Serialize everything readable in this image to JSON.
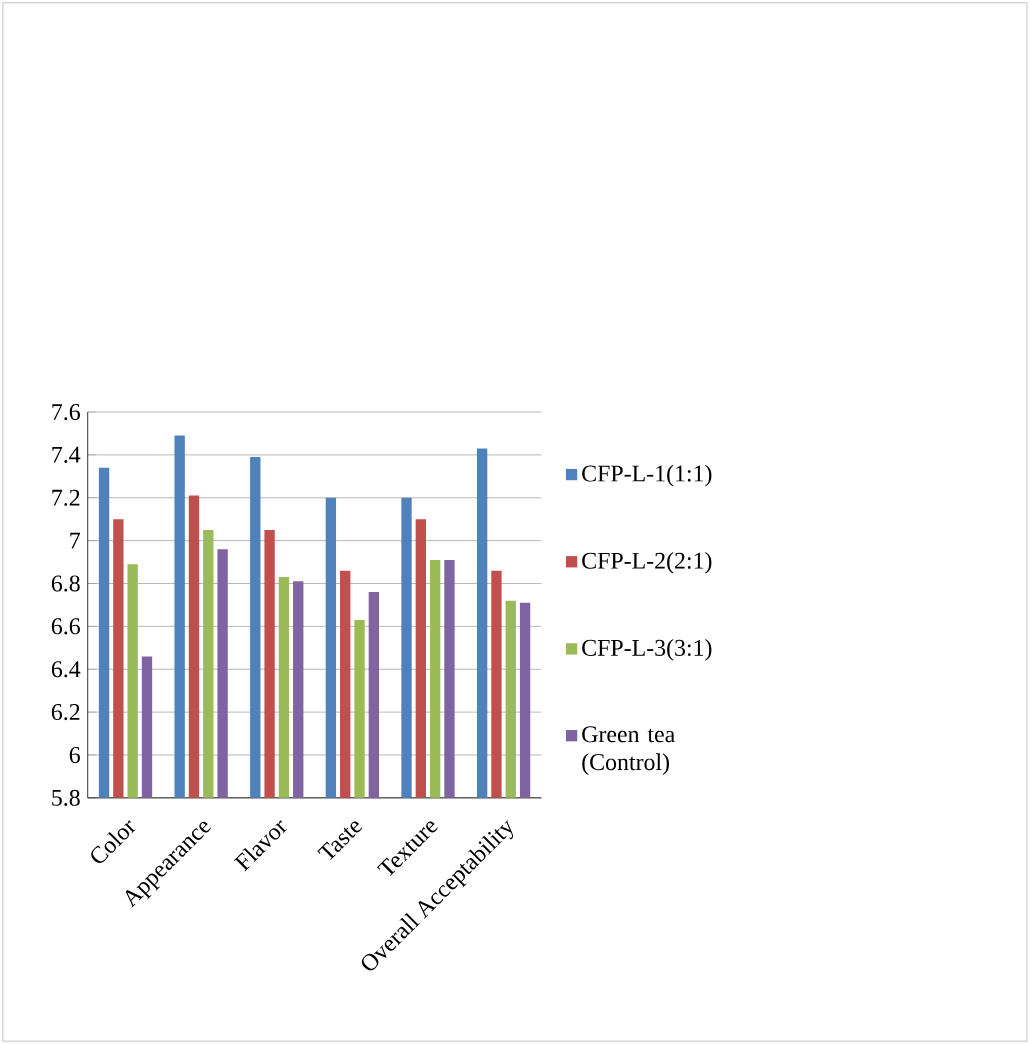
{
  "chart_data": {
    "type": "bar",
    "categories": [
      "Color",
      "Appearance",
      "Flavor",
      "Taste",
      "Texture",
      "Overall Acceptability"
    ],
    "series": [
      {
        "name": "CFP-L-1(1:1)",
        "color": "#4f81bd",
        "values": [
          7.34,
          7.49,
          7.39,
          7.2,
          7.2,
          7.43
        ]
      },
      {
        "name": "CFP-L-2(2:1)",
        "color": "#c0504d",
        "values": [
          7.1,
          7.21,
          7.05,
          6.86,
          7.1,
          6.86
        ]
      },
      {
        "name": "CFP-L-3(3:1)",
        "color": "#9bbb59",
        "values": [
          6.89,
          7.05,
          6.83,
          6.63,
          6.91,
          6.72
        ]
      },
      {
        "name": "Green tea (Control)",
        "color": "#8064a2",
        "values": [
          6.46,
          6.96,
          6.81,
          6.76,
          6.91,
          6.71
        ]
      }
    ],
    "ylim": [
      5.8,
      7.6
    ],
    "yticks": [
      5.8,
      6,
      6.2,
      6.4,
      6.6,
      6.8,
      7,
      7.2,
      7.4,
      7.6
    ],
    "grid": "y",
    "legend": "right"
  }
}
